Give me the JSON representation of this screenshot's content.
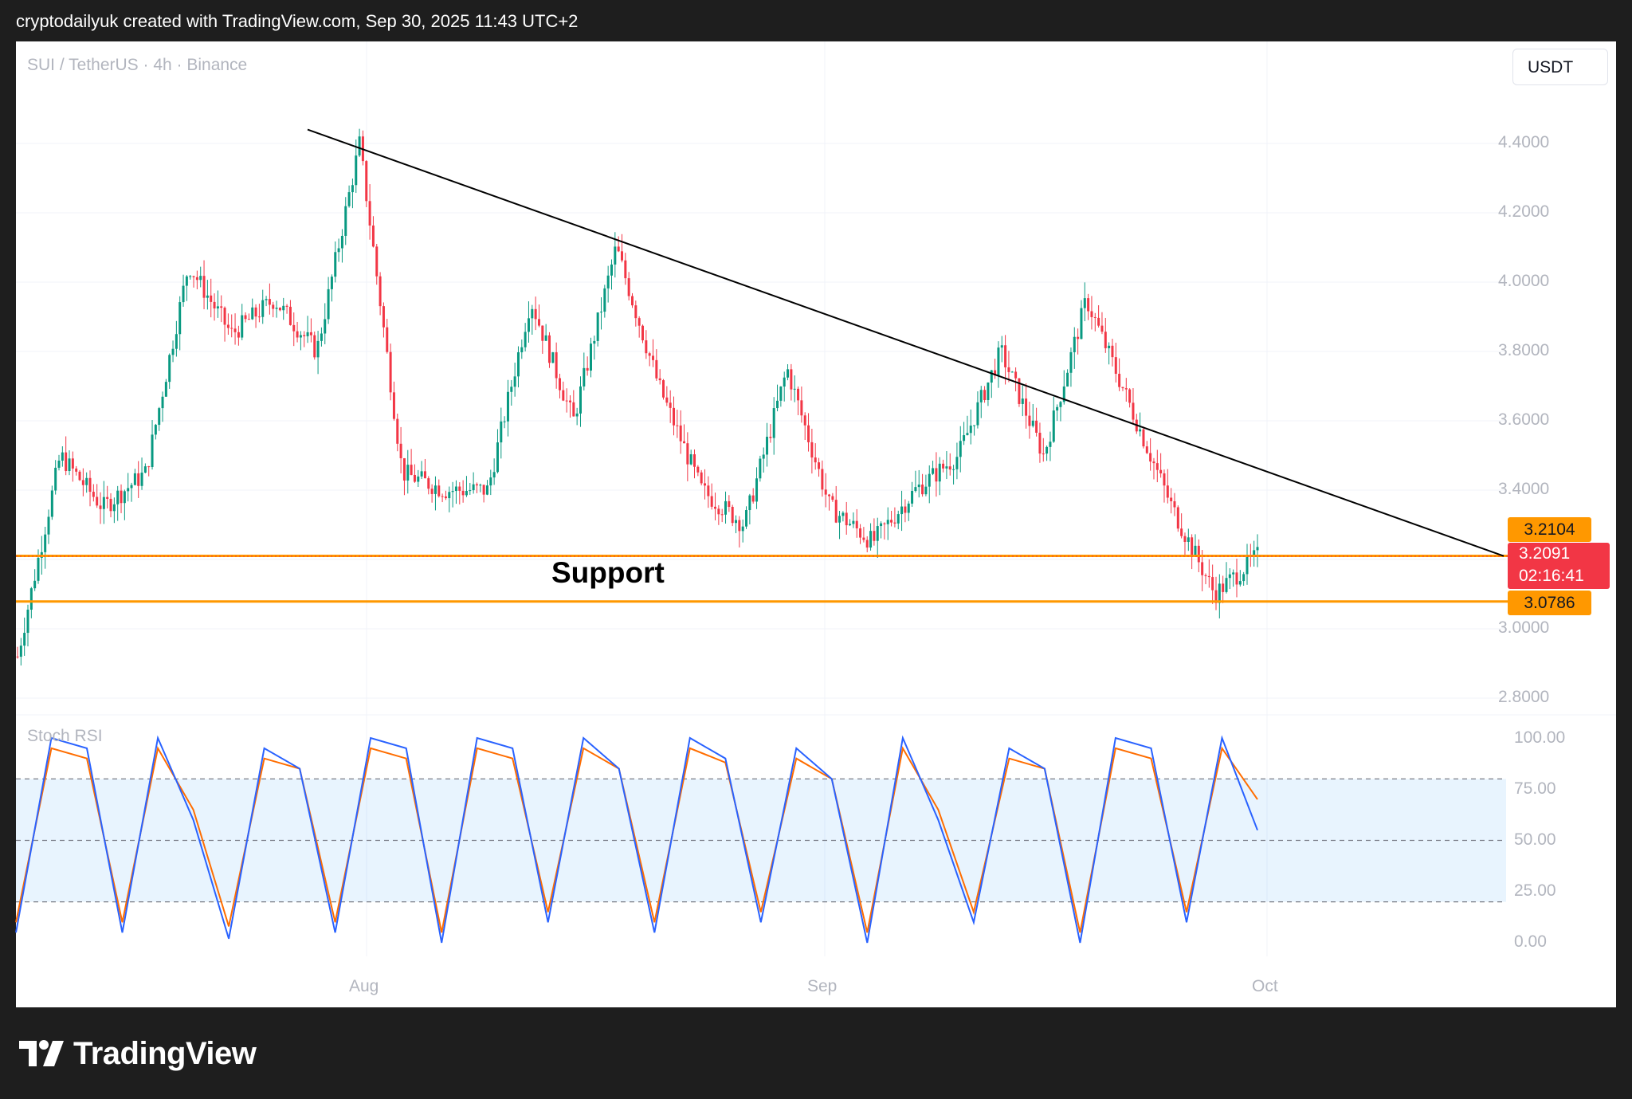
{
  "header": {
    "created_by": "cryptodailyuk created with TradingView.com, Sep 30, 2025 11:43 UTC+2"
  },
  "chart": {
    "symbol": "SUI / TetherUS · 4h · Binance",
    "currency_button": "USDT",
    "price_scale": [
      "4.4000",
      "4.2000",
      "4.0000",
      "3.8000",
      "3.6000",
      "3.4000",
      "3.0000",
      "2.8000"
    ],
    "last_price": "3.2091",
    "countdown": "02:16:41",
    "support_levels": {
      "upper": "3.2104",
      "lower": "3.0786"
    },
    "annotation": "Support",
    "time_labels": [
      "Aug",
      "Sep",
      "Oct"
    ],
    "colors": {
      "up": "#089981",
      "down": "#f23645",
      "support": "#ff9800",
      "trendline": "#000000",
      "stoch_k": "#2962ff",
      "stoch_d": "#ff6d00"
    }
  },
  "indicator": {
    "name": "Stoch RSI",
    "scale": [
      "100.00",
      "75.00",
      "50.00",
      "25.00",
      "0.00"
    ]
  },
  "footer": {
    "logo_text": "TradingView"
  },
  "chart_data": [
    {
      "type": "candlestick",
      "title": "SUI / TetherUS · 4h · Binance",
      "ylim": [
        2.75,
        4.6
      ],
      "approx_closes_by_period": {
        "x": [
          "Jul 07",
          "Jul 09",
          "Jul 11",
          "Jul 13",
          "Jul 15",
          "Jul 18",
          "Jul 21",
          "Jul 24",
          "Jul 27",
          "Aug 01",
          "Aug 03",
          "Aug 06",
          "Aug 10",
          "Aug 13",
          "Aug 16",
          "Aug 19",
          "Aug 22",
          "Aug 24",
          "Aug 27",
          "Aug 29",
          "Sep 01",
          "Sep 05",
          "Sep 09",
          "Sep 13",
          "Sep 17",
          "Sep 20",
          "Sep 22",
          "Sep 25",
          "Sep 28",
          "Sep 30"
        ],
        "close": [
          2.92,
          3.5,
          3.35,
          3.45,
          4.05,
          3.85,
          3.95,
          3.8,
          4.4,
          3.45,
          3.4,
          3.4,
          3.95,
          3.6,
          4.1,
          3.7,
          3.4,
          3.3,
          3.75,
          3.35,
          3.25,
          3.4,
          3.5,
          3.8,
          3.5,
          3.95,
          3.65,
          3.35,
          3.1,
          3.21
        ]
      },
      "support": [
        3.2104,
        3.0786
      ],
      "last": 3.2091,
      "trendline": {
        "from": [
          "Jul 27",
          4.44
        ],
        "to": [
          "Oct 15",
          3.21
        ]
      }
    },
    {
      "type": "line",
      "title": "Stoch RSI",
      "ylim": [
        0,
        100
      ],
      "bands": [
        20,
        50,
        80
      ],
      "series": [
        {
          "name": "K",
          "values": [
            5,
            100,
            95,
            5,
            100,
            60,
            2,
            95,
            85,
            5,
            100,
            95,
            0,
            100,
            95,
            10,
            100,
            85,
            5,
            100,
            90,
            10,
            95,
            80,
            0,
            100,
            60,
            10,
            95,
            85,
            0,
            100,
            95,
            10,
            100,
            55
          ]
        },
        {
          "name": "D",
          "values": [
            10,
            95,
            90,
            10,
            95,
            65,
            8,
            90,
            85,
            10,
            95,
            90,
            5,
            95,
            90,
            15,
            95,
            85,
            10,
            95,
            88,
            15,
            90,
            80,
            5,
            95,
            65,
            15,
            90,
            85,
            5,
            95,
            90,
            15,
            95,
            70
          ]
        }
      ]
    }
  ]
}
